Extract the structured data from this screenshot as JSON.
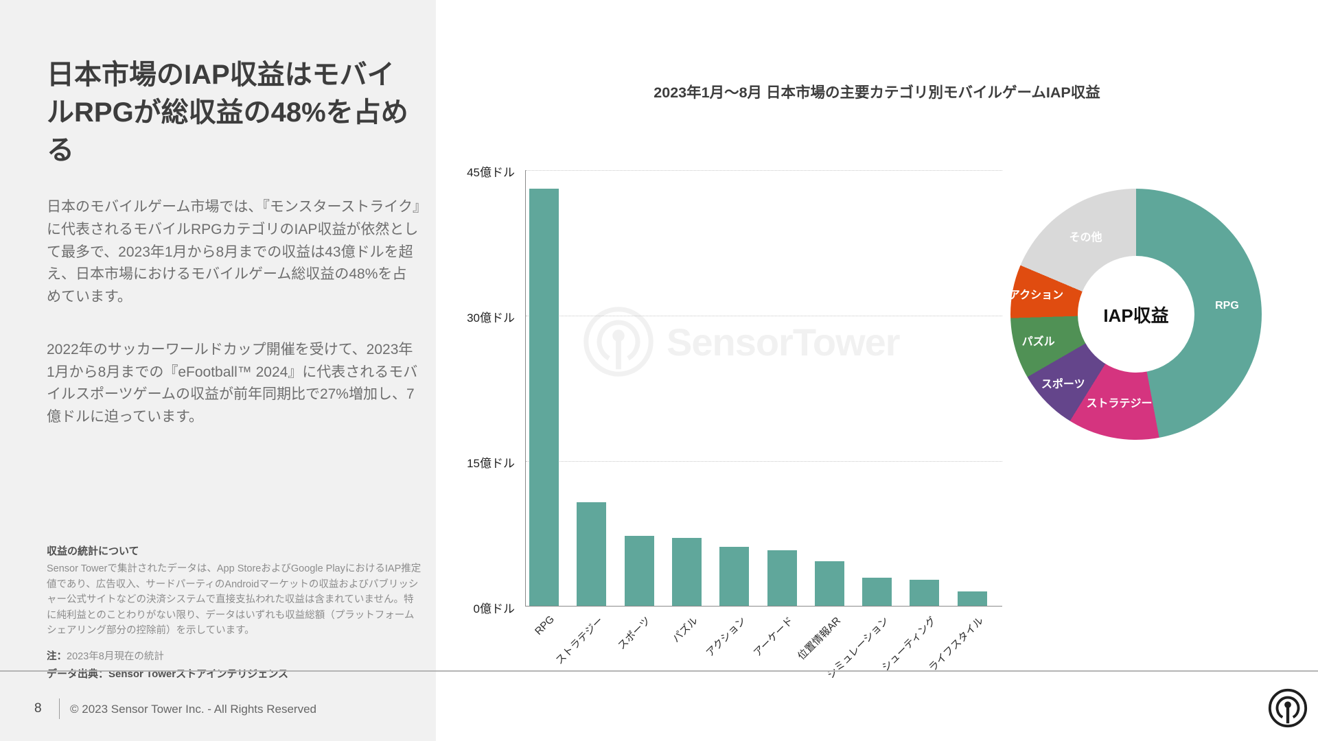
{
  "slide": {
    "left_panel": {
      "title": "日本市場のIAP収益はモバイルRPGが総収益の48%を占める",
      "paragraph_1": "日本のモバイルゲーム市場では、『モンスターストライク』に代表されるモバイルRPGカテゴリのIAP収益が依然として最多で、2023年1月から8月までの収益は43億ドルを超え、日本市場におけるモバイルゲーム総収益の48%を占めています。",
      "paragraph_2": "2022年のサッカーワールドカップ開催を受けて、2023年1月から8月までの『eFootball™ 2024』に代表されるモバイルスポーツゲームの収益が前年同期比で27%増加し、7億ドルに迫っています。",
      "footnote_heading": "収益の統計について",
      "footnote_body": "Sensor Towerで集計されたデータは、App StoreおよびGoogle PlayにおけるIAP推定値であり、広告収入、サードパーティのAndroidマーケットの収益およびパブリッシャー公式サイトなどの決済システムで直接支払われた収益は含まれていません。特に純利益とのことわりがない限り、データはいずれも収益総額（プラットフォームシェアリング部分の控除前）を示しています。",
      "note_label": "注：",
      "note_text": "2023年8月現在の統計",
      "source_text": "データ出典：Sensor Towerストアインテリジェンス"
    },
    "footer": {
      "page_number": "8",
      "copyright": "© 2023 Sensor Tower Inc. - All Rights Reserved"
    },
    "watermark_text": "SensorTower",
    "colors": {
      "accent_teal": "#60A79B",
      "left_bg": "#F1F1F1"
    }
  },
  "chart_data": [
    {
      "type": "bar",
      "title": "2023年1月～8月 日本市場の主要カテゴリ別モバイルゲームIAP収益",
      "categories": [
        "RPG",
        "ストラテジー",
        "スポーツ",
        "パズル",
        "アクション",
        "アーケード",
        "位置情報AR",
        "シミュレーション",
        "シューティング",
        "ライフスタイル"
      ],
      "values": [
        43,
        10.7,
        7.2,
        7,
        6.1,
        5.7,
        4.6,
        2.9,
        2.7,
        1.5
      ],
      "unit": "億ドル",
      "xlabel": "",
      "ylabel": "",
      "ylim": [
        0,
        45
      ],
      "yticks": [
        {
          "value": 45,
          "label": "45億ドル"
        },
        {
          "value": 30,
          "label": "30億ドル"
        },
        {
          "value": 15,
          "label": "15億ドル"
        },
        {
          "value": 0,
          "label": "0億ドル"
        }
      ],
      "grid": "horizontal-dotted",
      "bar_color": "#60A79B",
      "legend": "none"
    },
    {
      "type": "pie",
      "subtype": "donut",
      "center_label": "IAP収益",
      "slices": [
        {
          "label": "RPG",
          "pct": 48,
          "color": "#5FA79A",
          "text_color": "#ffffff"
        },
        {
          "label": "ストラテジー",
          "pct": 12,
          "color": "#D5347F",
          "text_color": "#ffffff"
        },
        {
          "label": "スポーツ",
          "pct": 8,
          "color": "#64458B",
          "text_color": "#ffffff"
        },
        {
          "label": "パズル",
          "pct": 8,
          "color": "#509155",
          "text_color": "#ffffff"
        },
        {
          "label": "アクション",
          "pct": 7,
          "color": "#E04C10",
          "text_color": "#ffffff"
        },
        {
          "label": "その他",
          "pct": 19,
          "color": "#D9D9D9",
          "text_color": "#ffffff"
        }
      ],
      "legend": "labels-on-slices"
    }
  ]
}
